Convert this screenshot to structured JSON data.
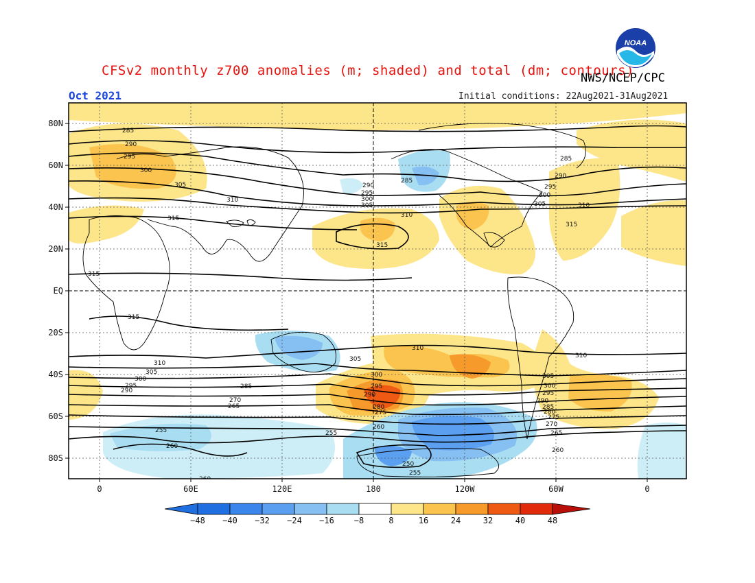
{
  "title": "CFSv2 monthly z700 anomalies (m; shaded) and total (dm; contours)",
  "agency": "NWS/NCEP/CPC",
  "month": "Oct 2021",
  "initial_conditions": "Initial conditions: 22Aug2021-31Aug2021",
  "logo_text": "NOAA",
  "colors": {
    "neg48": "#1f6fe0",
    "neg40": "#3a86ea",
    "neg32": "#5a9ff0",
    "neg24": "#86bff2",
    "neg16": "#a9ddf2",
    "neg8": "#cdeef6",
    "neutral": "#ffffff",
    "pos8": "#fde58a",
    "pos16": "#fbc44e",
    "pos24": "#f79a2c",
    "pos32": "#ee5a14",
    "pos40": "#e02a0a",
    "pos48": "#b81008"
  },
  "axes": {
    "lat_ticks": [
      "80N",
      "60N",
      "40N",
      "20N",
      "EQ",
      "20S",
      "40S",
      "60S",
      "80S"
    ],
    "lon_ticks": [
      "0",
      "60E",
      "120E",
      "180",
      "120W",
      "60W",
      "0"
    ]
  },
  "colorbar": {
    "labels": [
      "−48",
      "−40",
      "−32",
      "−24",
      "−16",
      "−8",
      "8",
      "16",
      "24",
      "32",
      "40",
      "48"
    ]
  },
  "contour_labels": [
    "285",
    "290",
    "295",
    "300",
    "305",
    "310",
    "315",
    "260",
    "255",
    "250",
    "265",
    "270",
    "275",
    "280"
  ]
}
